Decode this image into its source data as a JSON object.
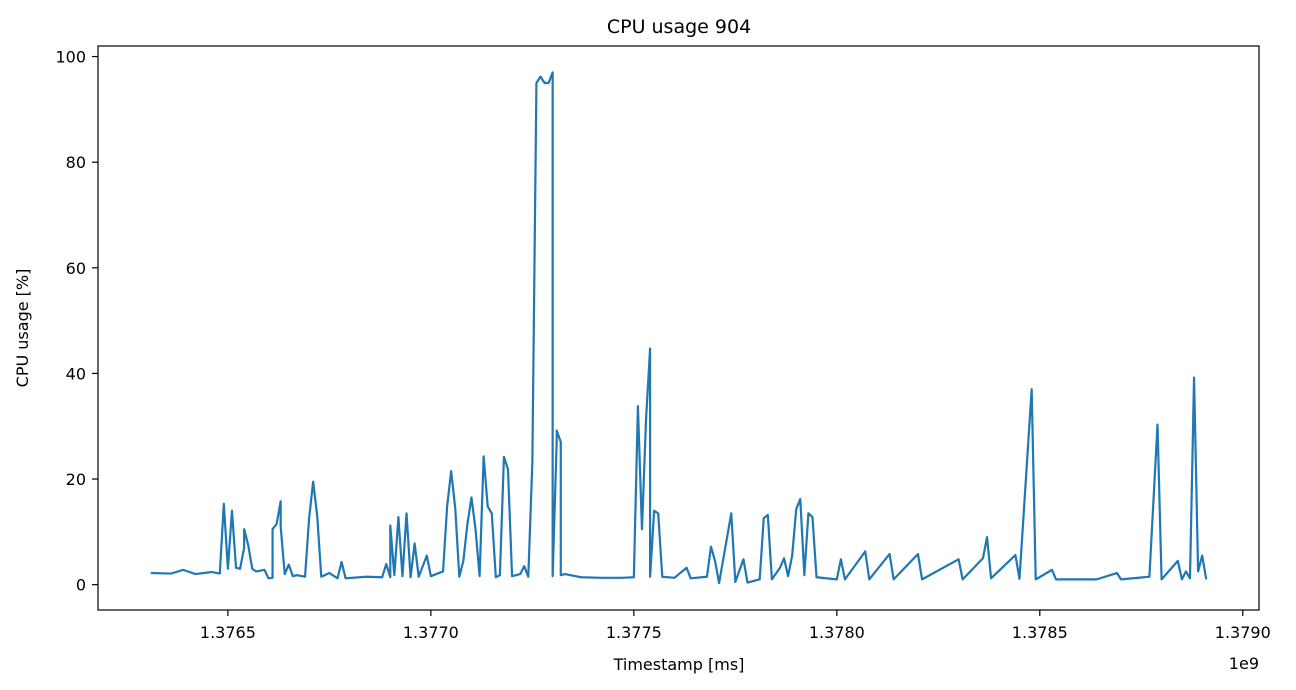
{
  "chart_data": {
    "type": "line",
    "title": "CPU usage 904",
    "xlabel": "Timestamp [ms]",
    "ylabel": "CPU usage [%]",
    "x_offset_label": "1e9",
    "xlim": [
      1.37618,
      1.37904
    ],
    "ylim": [
      -4.8,
      102
    ],
    "grid": false,
    "legend": "none",
    "x_ticks": [
      {
        "value": 1.3765,
        "label": "1.3765"
      },
      {
        "value": 1.377,
        "label": "1.3770"
      },
      {
        "value": 1.3775,
        "label": "1.3775"
      },
      {
        "value": 1.378,
        "label": "1.3780"
      },
      {
        "value": 1.3785,
        "label": "1.3785"
      },
      {
        "value": 1.379,
        "label": "1.3790"
      }
    ],
    "y_ticks": [
      {
        "value": 0,
        "label": "0"
      },
      {
        "value": 20,
        "label": "20"
      },
      {
        "value": 40,
        "label": "40"
      },
      {
        "value": 60,
        "label": "60"
      },
      {
        "value": 80,
        "label": "80"
      },
      {
        "value": 100,
        "label": "100"
      }
    ],
    "series": [
      {
        "color": "#1f77b4",
        "points": [
          [
            1.37631,
            2.2
          ],
          [
            1.37636,
            2.1
          ],
          [
            1.37639,
            2.8
          ],
          [
            1.37642,
            2.0
          ],
          [
            1.37646,
            2.4
          ],
          [
            1.37648,
            2.1
          ],
          [
            1.37649,
            15.3
          ],
          [
            1.3765,
            3.0
          ],
          [
            1.37651,
            14.0
          ],
          [
            1.37652,
            3.2
          ],
          [
            1.37653,
            3.0
          ],
          [
            1.37654,
            7.0
          ],
          [
            1.37654,
            10.5
          ],
          [
            1.37655,
            7.5
          ],
          [
            1.37656,
            3.0
          ],
          [
            1.37657,
            2.5
          ],
          [
            1.37659,
            2.8
          ],
          [
            1.3766,
            1.2
          ],
          [
            1.37661,
            1.3
          ],
          [
            1.37661,
            10.5
          ],
          [
            1.37662,
            11.5
          ],
          [
            1.37663,
            15.8
          ],
          [
            1.37663,
            11.0
          ],
          [
            1.37664,
            2.0
          ],
          [
            1.37665,
            3.8
          ],
          [
            1.37666,
            1.6
          ],
          [
            1.37667,
            1.8
          ],
          [
            1.37669,
            1.5
          ],
          [
            1.3767,
            12.5
          ],
          [
            1.37671,
            19.5
          ],
          [
            1.37672,
            13.0
          ],
          [
            1.37673,
            1.5
          ],
          [
            1.37675,
            2.2
          ],
          [
            1.37677,
            1.2
          ],
          [
            1.37678,
            4.3
          ],
          [
            1.37679,
            1.2
          ],
          [
            1.37684,
            1.5
          ],
          [
            1.37688,
            1.4
          ],
          [
            1.37689,
            3.9
          ],
          [
            1.3769,
            1.4
          ],
          [
            1.3769,
            11.2
          ],
          [
            1.37691,
            1.8
          ],
          [
            1.37692,
            12.8
          ],
          [
            1.37693,
            1.6
          ],
          [
            1.37694,
            13.5
          ],
          [
            1.37695,
            1.4
          ],
          [
            1.37696,
            7.8
          ],
          [
            1.37697,
            1.5
          ],
          [
            1.37699,
            5.5
          ],
          [
            1.377,
            1.6
          ],
          [
            1.37703,
            2.5
          ],
          [
            1.37704,
            14.8
          ],
          [
            1.37705,
            21.5
          ],
          [
            1.37706,
            14.5
          ],
          [
            1.37707,
            1.5
          ],
          [
            1.37708,
            4.5
          ],
          [
            1.37709,
            11.5
          ],
          [
            1.3771,
            16.5
          ],
          [
            1.37711,
            10.5
          ],
          [
            1.37712,
            1.6
          ],
          [
            1.37713,
            24.3
          ],
          [
            1.37714,
            14.8
          ],
          [
            1.37715,
            13.5
          ],
          [
            1.37716,
            1.4
          ],
          [
            1.37717,
            1.8
          ],
          [
            1.37718,
            24.2
          ],
          [
            1.37719,
            21.8
          ],
          [
            1.3772,
            1.6
          ],
          [
            1.37722,
            2.0
          ],
          [
            1.37723,
            3.5
          ],
          [
            1.37724,
            1.5
          ],
          [
            1.37725,
            23.3
          ],
          [
            1.37726,
            95.0
          ],
          [
            1.37727,
            96.2
          ],
          [
            1.37728,
            95.0
          ],
          [
            1.37729,
            95.0
          ],
          [
            1.3773,
            97.0
          ],
          [
            1.3773,
            1.6
          ],
          [
            1.37731,
            27.3
          ],
          [
            1.37731,
            29.2
          ],
          [
            1.37732,
            27.0
          ],
          [
            1.37732,
            1.8
          ],
          [
            1.37733,
            2.0
          ],
          [
            1.37737,
            1.4
          ],
          [
            1.37742,
            1.3
          ],
          [
            1.37747,
            1.3
          ],
          [
            1.3775,
            1.4
          ],
          [
            1.37751,
            33.8
          ],
          [
            1.37752,
            10.5
          ],
          [
            1.37753,
            31.2
          ],
          [
            1.37754,
            44.7
          ],
          [
            1.37754,
            1.5
          ],
          [
            1.37755,
            14.0
          ],
          [
            1.37756,
            13.5
          ],
          [
            1.37757,
            1.5
          ],
          [
            1.3776,
            1.3
          ],
          [
            1.37763,
            3.2
          ],
          [
            1.37764,
            1.2
          ],
          [
            1.37768,
            1.5
          ],
          [
            1.37769,
            7.2
          ],
          [
            1.3777,
            4.5
          ],
          [
            1.37771,
            0.3
          ],
          [
            1.37774,
            13.5
          ],
          [
            1.37775,
            0.5
          ],
          [
            1.37777,
            4.8
          ],
          [
            1.37778,
            0.4
          ],
          [
            1.37781,
            1.0
          ],
          [
            1.37782,
            12.6
          ],
          [
            1.37783,
            13.2
          ],
          [
            1.37784,
            1.0
          ],
          [
            1.37786,
            3.2
          ],
          [
            1.37787,
            5.0
          ],
          [
            1.37788,
            1.6
          ],
          [
            1.37789,
            5.5
          ],
          [
            1.3779,
            14.3
          ],
          [
            1.37791,
            16.2
          ],
          [
            1.37792,
            1.8
          ],
          [
            1.37793,
            13.5
          ],
          [
            1.37794,
            12.8
          ],
          [
            1.37795,
            1.4
          ],
          [
            1.378,
            1.0
          ],
          [
            1.37801,
            4.8
          ],
          [
            1.37802,
            1.0
          ],
          [
            1.37807,
            6.3
          ],
          [
            1.37808,
            1.0
          ],
          [
            1.37813,
            5.8
          ],
          [
            1.37814,
            1.0
          ],
          [
            1.37819,
            5.0
          ],
          [
            1.3782,
            5.8
          ],
          [
            1.37821,
            1.0
          ],
          [
            1.3783,
            4.8
          ],
          [
            1.37831,
            1.0
          ],
          [
            1.37836,
            5.0
          ],
          [
            1.37837,
            9.0
          ],
          [
            1.37838,
            1.2
          ],
          [
            1.37844,
            5.6
          ],
          [
            1.37845,
            1.1
          ],
          [
            1.37848,
            37.0
          ],
          [
            1.37849,
            1.0
          ],
          [
            1.37853,
            2.8
          ],
          [
            1.37854,
            1.0
          ],
          [
            1.37858,
            1.0
          ],
          [
            1.37864,
            1.0
          ],
          [
            1.37869,
            2.2
          ],
          [
            1.3787,
            1.0
          ],
          [
            1.37877,
            1.5
          ],
          [
            1.37879,
            30.3
          ],
          [
            1.3788,
            1.0
          ],
          [
            1.37884,
            4.5
          ],
          [
            1.37885,
            1.0
          ],
          [
            1.37886,
            2.5
          ],
          [
            1.37887,
            1.2
          ],
          [
            1.37888,
            39.2
          ],
          [
            1.37889,
            2.5
          ],
          [
            1.3789,
            5.5
          ],
          [
            1.37891,
            1.0
          ]
        ]
      }
    ]
  }
}
